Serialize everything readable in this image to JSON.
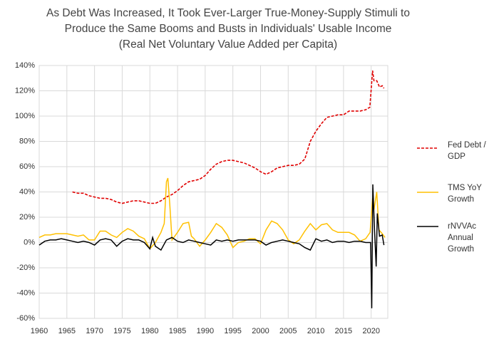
{
  "chart_data": {
    "type": "line",
    "title": "As Debt Was Increased, It Took Ever-Larger True-Money-Supply Stimuli to Produce the Same Booms and Busts in Individuals' Usable Income",
    "subtitle": "(Real Net Voluntary Value Added per Capita)",
    "xlim": [
      1960,
      2023
    ],
    "xticks": [
      1960,
      1965,
      1970,
      1975,
      1980,
      1985,
      1990,
      1995,
      2000,
      2005,
      2010,
      2015,
      2020
    ],
    "ylim": [
      -60,
      140
    ],
    "yticks": [
      {
        "value": -60,
        "label": "-60%"
      },
      {
        "value": -40,
        "label": "-40%"
      },
      {
        "value": -20,
        "label": "-20%"
      },
      {
        "value": 0,
        "label": "0%"
      },
      {
        "value": 20,
        "label": "20%"
      },
      {
        "value": 40,
        "label": "40%"
      },
      {
        "value": 60,
        "label": "60%"
      },
      {
        "value": 80,
        "label": "80%"
      },
      {
        "value": 100,
        "label": "100%"
      },
      {
        "value": 120,
        "label": "120%"
      },
      {
        "value": 140,
        "label": "140%"
      }
    ],
    "grid": true,
    "series": [
      {
        "name": "Fed Debt / GDP",
        "color": "#e00000",
        "dashed": true,
        "x": [
          1966,
          1967,
          1968,
          1969,
          1970,
          1971,
          1972,
          1973,
          1974,
          1975,
          1976,
          1977,
          1978,
          1979,
          1980,
          1981,
          1982,
          1983,
          1984,
          1985,
          1986,
          1987,
          1988,
          1989,
          1990,
          1991,
          1992,
          1993,
          1994,
          1995,
          1996,
          1997,
          1998,
          1999,
          2000,
          2001,
          2002,
          2003,
          2004,
          2005,
          2006,
          2007,
          2008,
          2009,
          2010,
          2011,
          2012,
          2013,
          2014,
          2015,
          2016,
          2017,
          2018,
          2019,
          2019.75,
          2020.25,
          2020.5,
          2021,
          2021.5,
          2022,
          2022.3
        ],
        "values": [
          40,
          39,
          39,
          37,
          36,
          35,
          35,
          34,
          32,
          31,
          32,
          33,
          33,
          32,
          31,
          31,
          33,
          36,
          38,
          41,
          45,
          48,
          49,
          50,
          53,
          58,
          62,
          64,
          65,
          65,
          64,
          63,
          61,
          59,
          56,
          54,
          56,
          59,
          60,
          61,
          61,
          62,
          66,
          80,
          88,
          94,
          99,
          100,
          101,
          101,
          104,
          104,
          104,
          105,
          107,
          136,
          128,
          128,
          123,
          124,
          122
        ]
      },
      {
        "name": "TMS YoY Growth",
        "color": "#ffc000",
        "dashed": false,
        "x": [
          1960,
          1961,
          1962,
          1963,
          1964,
          1965,
          1966,
          1967,
          1968,
          1969,
          1970,
          1971,
          1972,
          1973,
          1974,
          1975,
          1976,
          1977,
          1978,
          1979,
          1980,
          1981,
          1982,
          1982.6,
          1983,
          1983.25,
          1983.6,
          1984,
          1985,
          1986,
          1987,
          1987.5,
          1988,
          1989,
          1990,
          1991,
          1992,
          1993,
          1994,
          1995,
          1996,
          1997,
          1998,
          1999,
          2000,
          2001,
          2002,
          2003,
          2004,
          2005,
          2006,
          2007,
          2008,
          2009,
          2010,
          2011,
          2012,
          2013,
          2014,
          2015,
          2016,
          2017,
          2018,
          2019,
          2019.8,
          2020.25,
          2020.5,
          2021,
          2021.4,
          2022,
          2022.5
        ],
        "values": [
          4,
          6,
          6,
          7,
          7,
          7,
          6,
          5,
          6,
          2,
          2,
          9,
          9,
          6,
          4,
          8,
          11,
          9,
          5,
          3,
          -5,
          0,
          8,
          15,
          48,
          51,
          30,
          2,
          8,
          15,
          16,
          5,
          3,
          -3,
          2,
          8,
          15,
          12,
          6,
          -4,
          0,
          1,
          3,
          3,
          -1,
          10,
          17,
          15,
          10,
          2,
          -1,
          2,
          9,
          15,
          10,
          14,
          15,
          10,
          8,
          8,
          8,
          6,
          1,
          3,
          8,
          35,
          26,
          40,
          10,
          7,
          4
        ]
      },
      {
        "name": "rNVVAc Annual Growth",
        "color": "#000000",
        "dashed": false,
        "x": [
          1960,
          1961,
          1962,
          1963,
          1964,
          1965,
          1966,
          1967,
          1968,
          1969,
          1970,
          1971,
          1972,
          1973,
          1974,
          1975,
          1976,
          1977,
          1978,
          1979,
          1980,
          1980.5,
          1981,
          1982,
          1983,
          1984,
          1985,
          1986,
          1987,
          1988,
          1989,
          1990,
          1991,
          1992,
          1993,
          1994,
          1995,
          1996,
          1997,
          1998,
          1999,
          2000,
          2001,
          2002,
          2003,
          2004,
          2005,
          2006,
          2007,
          2008,
          2009,
          2010,
          2011,
          2012,
          2013,
          2014,
          2015,
          2016,
          2017,
          2018,
          2019,
          2019.9,
          2020.1,
          2020.3,
          2020.6,
          2020.9,
          2021.1,
          2021.5,
          2022,
          2022.3
        ],
        "values": [
          -2,
          1,
          2,
          2,
          3,
          2,
          1,
          0,
          1,
          0,
          -2,
          2,
          3,
          2,
          -3,
          1,
          3,
          2,
          2,
          0,
          -5,
          4,
          -3,
          -6,
          2,
          4,
          1,
          0,
          2,
          1,
          0,
          -1,
          -2,
          2,
          1,
          2,
          1,
          2,
          2,
          2,
          2,
          1,
          -2,
          0,
          1,
          2,
          1,
          0,
          -1,
          -4,
          -6,
          3,
          1,
          2,
          0,
          1,
          1,
          0,
          1,
          1,
          0,
          0,
          -52,
          46,
          10,
          -19,
          23,
          5,
          6,
          -2
        ]
      }
    ]
  }
}
